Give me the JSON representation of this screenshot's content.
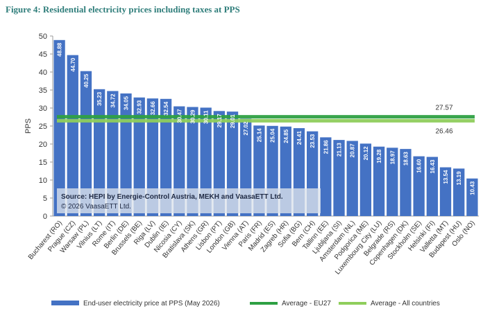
{
  "figure_title": "Figure 4: Residential electricity prices including taxes at PPS",
  "chart_data": {
    "type": "bar",
    "ylabel": "PPS",
    "xlabel": "",
    "ylim": [
      0,
      50
    ],
    "yticks": [
      0,
      5,
      10,
      15,
      20,
      25,
      30,
      35,
      40,
      45,
      50
    ],
    "grid": false,
    "legend_position": "bottom",
    "categories": [
      "Bucharest (RO)",
      "Prague (CZ)",
      "Warsaw (PL)",
      "Vilnius (LT)",
      "Rome (IT)",
      "Berlin (DE)",
      "Brussels (BE)",
      "Riga (LV)",
      "Dublin (IE)",
      "Nicosia (CY)",
      "Bratislava (SK)",
      "Athens (GR)",
      "Lisbon (PT)",
      "London (GB)",
      "Vienna (AT)",
      "Paris (FR)",
      "Madrid (ES)",
      "Zagreb (HR)",
      "Sofia (BG)",
      "Bern (CH)",
      "Tallinn (EE)",
      "Ljubljana (SI)",
      "Amsterdam (NL)",
      "Podgorica (ME)",
      "Luxembourg City (LU)",
      "Belgrade (RS)",
      "Copenhagen (DK)",
      "Stockholm (SE)",
      "Helsinki (FI)",
      "Valletta (MT)",
      "Budapest (HU)",
      "Oslo (NO)"
    ],
    "series": [
      {
        "name": "End-user electricity price at PPS (May 2026)",
        "color": "#4472c4",
        "values": [
          48.88,
          44.7,
          40.25,
          35.23,
          34.72,
          34.05,
          32.93,
          32.66,
          32.54,
          30.47,
          30.29,
          30.11,
          29.17,
          29.01,
          27.02,
          25.14,
          25.04,
          24.85,
          24.41,
          23.53,
          21.86,
          21.13,
          20.87,
          20.12,
          19.28,
          18.97,
          18.63,
          16.6,
          16.43,
          13.54,
          13.19,
          10.43
        ]
      }
    ],
    "value_labels": [
      "48.88",
      "44.70",
      "40.25",
      "35.23",
      "34.72",
      "34.05",
      "32.93",
      "32.66",
      "32.54",
      "30.47",
      "30.29",
      "30.11",
      "29.17",
      "29.01",
      "27.02",
      "25.14",
      "25.04",
      "24.85",
      "24.41",
      "23.53",
      "21.86",
      "21.13",
      "20.87",
      "20.12",
      "19.28",
      "18.97",
      "18.63",
      "16.60",
      "16.43",
      "13.54",
      "13.19",
      "10.43"
    ],
    "reference_lines": [
      {
        "name": "Average - EU27",
        "value": 27.57,
        "label": "27.57",
        "color": "#2ea043"
      },
      {
        "name": "Average - All countries",
        "value": 26.46,
        "label": "26.46",
        "color": "#8fce5c"
      }
    ],
    "annotation": {
      "line1": "Source: HEPI by Energie-Control Austria, MEKH and VaasaETT Ltd.",
      "line2": "© 2026 VaasaETT Ltd."
    }
  }
}
